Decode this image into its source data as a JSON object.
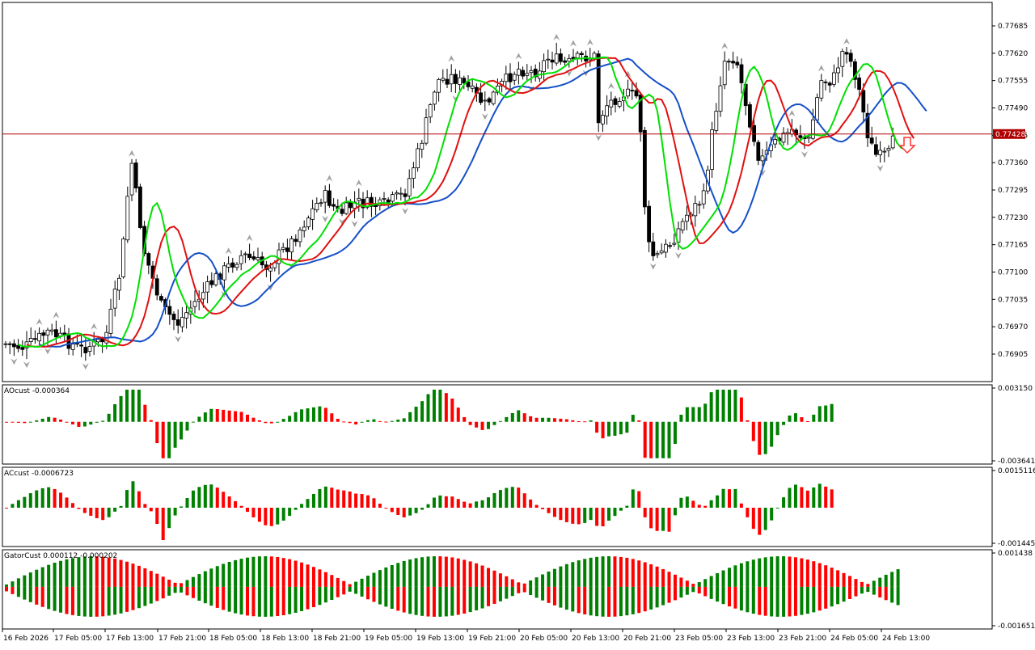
{
  "chart_data": [
    {
      "type": "candlestick",
      "title": "",
      "panel": "price",
      "y_ticks": [
        "0.77685",
        "0.77620",
        "0.77555",
        "0.77490",
        "0.77425",
        "0.77360",
        "0.77295",
        "0.77230",
        "0.77165",
        "0.77100",
        "0.77035",
        "0.76970",
        "0.76905"
      ],
      "ylim": [
        0.7686,
        0.7773
      ],
      "current_price": "0.77428",
      "current_price_value": 0.77428,
      "indicator_colors": {
        "jaw": "#1550c8",
        "teeth": "#e01010",
        "lips": "#00e000",
        "bull": "#ffffff",
        "bear": "#000000",
        "price_line": "#b00000",
        "arrow": "#ff3030"
      }
    },
    {
      "type": "bar",
      "panel": "AOcust",
      "label": "AOcust -0.000364",
      "y_ticks": [
        "0.003150",
        "-0.003641"
      ],
      "ylim": [
        -0.003641,
        0.00315
      ],
      "colors": {
        "up": "#008000",
        "down": "#ff0000"
      }
    },
    {
      "type": "bar",
      "panel": "ACcust",
      "label": "ACcust -0.0006723",
      "y_ticks": [
        "0.0015116",
        "-0.0014458"
      ],
      "ylim": [
        -0.0014458,
        0.0015116
      ],
      "colors": {
        "up": "#008000",
        "down": "#ff0000"
      }
    },
    {
      "type": "bar",
      "panel": "GatorCust",
      "label": "GatorCust 0.000112 -0.000202",
      "y_ticks": [
        "0.001438",
        "-0.001651"
      ],
      "ylim": [
        -0.001651,
        0.001438
      ],
      "colors": {
        "up": "#008000",
        "down": "#ff0000"
      }
    }
  ],
  "x_ticks": [
    "16 Feb 2026",
    "17 Feb 05:00",
    "17 Feb 13:00",
    "17 Feb 21:00",
    "18 Feb 05:00",
    "18 Feb 13:00",
    "18 Feb 21:00",
    "19 Feb 05:00",
    "19 Feb 13:00",
    "19 Feb 21:00",
    "20 Feb 05:00",
    "20 Feb 13:00",
    "20 Feb 21:00",
    "23 Feb 05:00",
    "23 Feb 13:00",
    "23 Feb 21:00",
    "24 Feb 05:00",
    "24 Feb 13:00"
  ]
}
